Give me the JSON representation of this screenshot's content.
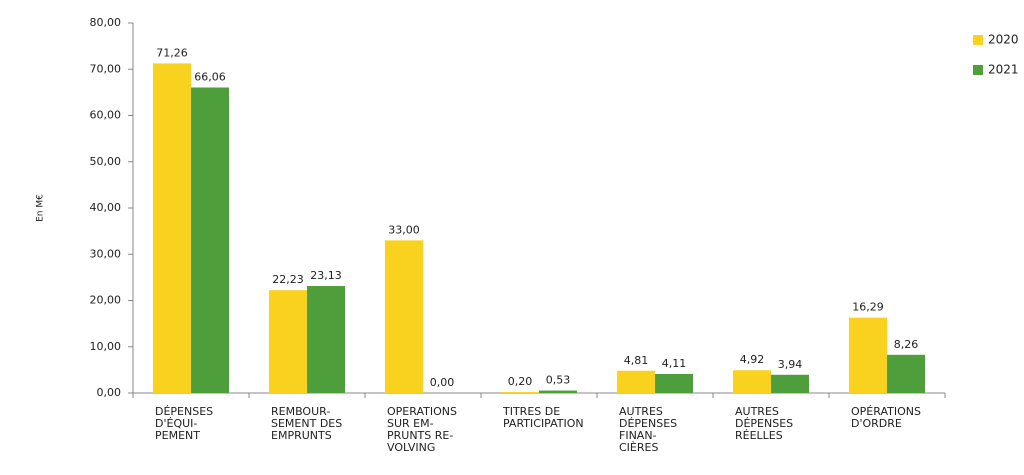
{
  "chart_data": {
    "type": "bar",
    "y_label": "En M€",
    "categories": [
      [
        "DÉPENSES",
        "D'ÉQUI-",
        "PEMENT"
      ],
      [
        "REMBOUR-",
        "SEMENT DES",
        "EMPRUNTS"
      ],
      [
        "OPERATIONS",
        "SUR EM-",
        "PRUNTS RE-",
        "VOLVING"
      ],
      [
        "TITRES DE",
        "PARTICIPATION"
      ],
      [
        "AUTRES",
        "DÉPENSES",
        "FINAN-",
        "CIÈRES"
      ],
      [
        "AUTRES",
        "DÉPENSES",
        "RÉELLES"
      ],
      [
        "OPÉRATIONS",
        "D'ORDRE"
      ]
    ],
    "series": [
      {
        "name": "2020",
        "color": "#f9d11f",
        "values": [
          71.26,
          22.23,
          33.0,
          0.2,
          4.81,
          4.92,
          16.29
        ],
        "value_labels": [
          "71,26",
          "22,23",
          "33,00",
          "0,20",
          "4,81",
          "4,92",
          "16,29"
        ]
      },
      {
        "name": "2021",
        "color": "#4f9e3c",
        "values": [
          66.06,
          23.13,
          0.0,
          0.53,
          4.11,
          3.94,
          8.26
        ],
        "value_labels": [
          "66,06",
          "23,13",
          "0,00",
          "0,53",
          "4,11",
          "3,94",
          "8,26"
        ]
      }
    ],
    "ylim": [
      0,
      80
    ],
    "yticks": [
      {
        "value": 0,
        "label": "0,00"
      },
      {
        "value": 10,
        "label": "10,00"
      },
      {
        "value": 20,
        "label": "20,00"
      },
      {
        "value": 30,
        "label": "30,00"
      },
      {
        "value": 40,
        "label": "40,00"
      },
      {
        "value": 50,
        "label": "50,00"
      },
      {
        "value": 60,
        "label": "60,00"
      },
      {
        "value": 70,
        "label": "70,00"
      },
      {
        "value": 80,
        "label": "80,00"
      }
    ],
    "grid": false,
    "legend": "right"
  }
}
